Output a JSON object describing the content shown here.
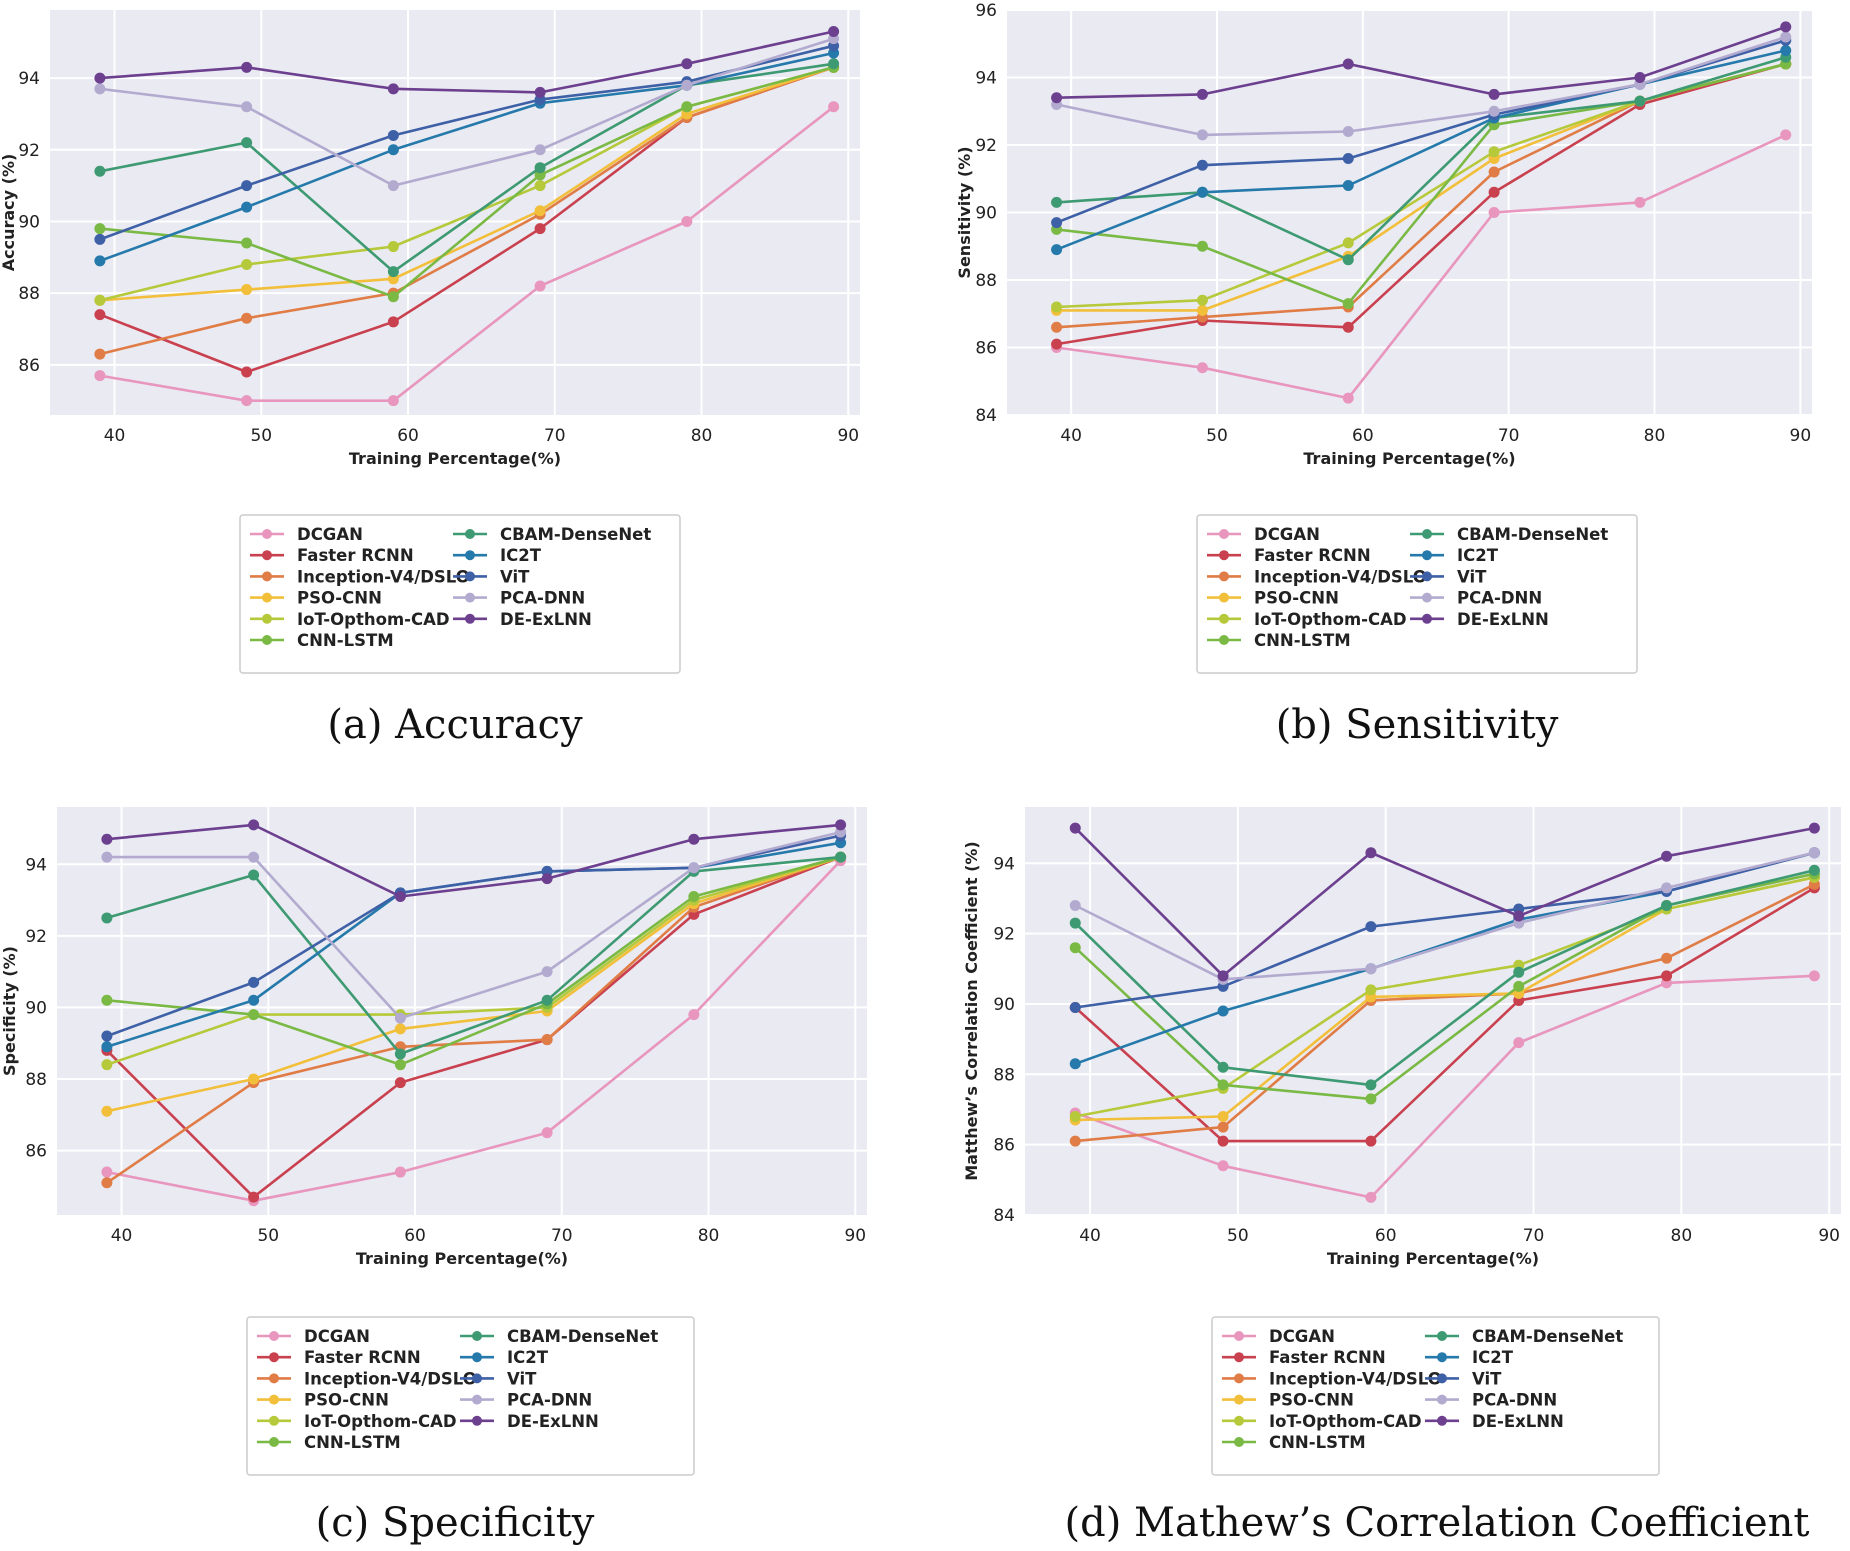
{
  "figure": {
    "x": [
      39,
      49,
      59,
      69,
      79,
      89
    ],
    "series_names": [
      "DCGAN",
      "Faster RCNN",
      "Inception-V4/DSLO",
      "PSO-CNN",
      "IoT-Opthom-CAD",
      "CNN-LSTM",
      "CBAM-DenseNet",
      "IC2T",
      "ViT",
      "PCA-DNN",
      "DE-ExLNN"
    ],
    "colors": [
      "#e896bd",
      "#c9404f",
      "#e07c45",
      "#f2bf3a",
      "#b6c93a",
      "#79b944",
      "#3e9a72",
      "#2579ab",
      "#3e60a6",
      "#b3abcf",
      "#6c3f8f"
    ],
    "x_ticks": [
      40,
      50,
      60,
      70,
      80,
      90
    ]
  },
  "chart_data": [
    {
      "type": "line",
      "caption": "(a) Accuracy",
      "xlabel": "Training Percentage(%)",
      "ylabel": "Accuracy (%)",
      "xlim": [
        35.6,
        90.8
      ],
      "ylim": [
        84.6,
        95.9
      ],
      "yticks": [
        86,
        88,
        90,
        92,
        94
      ],
      "series": [
        {
          "name": "DCGAN",
          "values": [
            85.7,
            85.0,
            85.0,
            88.2,
            90.0,
            93.2
          ]
        },
        {
          "name": "Faster RCNN",
          "values": [
            87.4,
            85.8,
            87.2,
            89.8,
            92.9,
            94.3
          ]
        },
        {
          "name": "Inception-V4/DSLO",
          "values": [
            86.3,
            87.3,
            88.0,
            90.2,
            92.9,
            94.3
          ]
        },
        {
          "name": "PSO-CNN",
          "values": [
            87.8,
            88.1,
            88.4,
            90.3,
            93.0,
            94.3
          ]
        },
        {
          "name": "IoT-Opthom-CAD",
          "values": [
            87.8,
            88.8,
            89.3,
            91.0,
            93.2,
            94.3
          ]
        },
        {
          "name": "CNN-LSTM",
          "values": [
            89.8,
            89.4,
            87.9,
            91.3,
            93.2,
            94.3
          ]
        },
        {
          "name": "CBAM-DenseNet",
          "values": [
            91.4,
            92.2,
            88.6,
            91.5,
            93.8,
            94.4
          ]
        },
        {
          "name": "IC2T",
          "values": [
            88.9,
            90.4,
            92.0,
            93.3,
            93.8,
            94.7
          ]
        },
        {
          "name": "ViT",
          "values": [
            89.5,
            91.0,
            92.4,
            93.4,
            93.9,
            94.9
          ]
        },
        {
          "name": "PCA-DNN",
          "values": [
            93.7,
            93.2,
            91.0,
            92.0,
            93.8,
            95.1
          ]
        },
        {
          "name": "DE-ExLNN",
          "values": [
            94.0,
            94.3,
            93.7,
            93.6,
            94.4,
            95.3
          ]
        }
      ]
    },
    {
      "type": "line",
      "caption": "(b) Sensitivity",
      "xlabel": "Training Percentage(%)",
      "ylabel": "Sensitivity (%)",
      "xlim": [
        35.6,
        90.8
      ],
      "ylim": [
        84,
        96
      ],
      "yticks": [
        84,
        86,
        88,
        90,
        92,
        94,
        96
      ],
      "series": [
        {
          "name": "DCGAN",
          "values": [
            86.0,
            85.4,
            84.5,
            90.0,
            90.3,
            92.3
          ]
        },
        {
          "name": "Faster RCNN",
          "values": [
            86.1,
            86.8,
            86.6,
            90.6,
            93.2,
            94.4
          ]
        },
        {
          "name": "Inception-V4/DSLO",
          "values": [
            86.6,
            86.9,
            87.2,
            91.2,
            93.3,
            94.4
          ]
        },
        {
          "name": "PSO-CNN",
          "values": [
            87.1,
            87.1,
            88.7,
            91.6,
            93.3,
            94.4
          ]
        },
        {
          "name": "IoT-Opthom-CAD",
          "values": [
            87.2,
            87.4,
            89.1,
            91.8,
            93.3,
            94.4
          ]
        },
        {
          "name": "CNN-LSTM",
          "values": [
            89.5,
            89.0,
            87.3,
            92.6,
            93.3,
            94.4
          ]
        },
        {
          "name": "CBAM-DenseNet",
          "values": [
            90.3,
            90.6,
            88.6,
            92.8,
            93.3,
            94.6
          ]
        },
        {
          "name": "IC2T",
          "values": [
            88.9,
            90.6,
            90.8,
            92.8,
            93.8,
            94.8
          ]
        },
        {
          "name": "ViT",
          "values": [
            89.7,
            91.4,
            91.6,
            92.9,
            93.8,
            95.1
          ]
        },
        {
          "name": "PCA-DNN",
          "values": [
            93.2,
            92.3,
            92.4,
            93.0,
            93.8,
            95.2
          ]
        },
        {
          "name": "DE-ExLNN",
          "values": [
            93.4,
            93.5,
            94.4,
            93.5,
            94.0,
            95.5
          ]
        }
      ]
    },
    {
      "type": "line",
      "caption": "(c) Specificity",
      "xlabel": "Training Percentage(%)",
      "ylabel": "Specificity (%)",
      "xlim": [
        35.6,
        90.8
      ],
      "ylim": [
        84.2,
        95.6
      ],
      "yticks": [
        86,
        88,
        90,
        92,
        94
      ],
      "series": [
        {
          "name": "DCGAN",
          "values": [
            85.4,
            84.6,
            85.4,
            86.5,
            89.8,
            94.1
          ]
        },
        {
          "name": "Faster RCNN",
          "values": [
            88.8,
            84.7,
            87.9,
            89.1,
            92.6,
            94.2
          ]
        },
        {
          "name": "Inception-V4/DSLO",
          "values": [
            85.1,
            87.9,
            88.9,
            89.1,
            92.8,
            94.2
          ]
        },
        {
          "name": "PSO-CNN",
          "values": [
            87.1,
            88.0,
            89.4,
            89.9,
            92.9,
            94.2
          ]
        },
        {
          "name": "IoT-Opthom-CAD",
          "values": [
            88.4,
            89.8,
            89.8,
            90.0,
            93.0,
            94.2
          ]
        },
        {
          "name": "CNN-LSTM",
          "values": [
            90.2,
            89.8,
            88.4,
            90.1,
            93.1,
            94.2
          ]
        },
        {
          "name": "CBAM-DenseNet",
          "values": [
            92.5,
            93.7,
            88.7,
            90.2,
            93.8,
            94.2
          ]
        },
        {
          "name": "IC2T",
          "values": [
            88.9,
            90.2,
            93.2,
            93.8,
            93.9,
            94.6
          ]
        },
        {
          "name": "ViT",
          "values": [
            89.2,
            90.7,
            93.2,
            93.8,
            93.9,
            94.8
          ]
        },
        {
          "name": "PCA-DNN",
          "values": [
            94.2,
            94.2,
            89.7,
            91.0,
            93.9,
            94.9
          ]
        },
        {
          "name": "DE-ExLNN",
          "values": [
            94.7,
            95.1,
            93.1,
            93.6,
            94.7,
            95.1
          ]
        }
      ]
    },
    {
      "type": "line",
      "caption": "(d) Mathew’s Correlation Coefficient",
      "xlabel": "Training Percentage(%)",
      "ylabel": "Matthew’s Correlation Coefficient (%)",
      "xlim": [
        35.6,
        90.8
      ],
      "ylim": [
        84,
        95.6
      ],
      "yticks": [
        84,
        86,
        88,
        90,
        92,
        94
      ],
      "series": [
        {
          "name": "DCGAN",
          "values": [
            86.9,
            85.4,
            84.5,
            88.9,
            90.6,
            90.8
          ]
        },
        {
          "name": "Faster RCNN",
          "values": [
            89.9,
            86.1,
            86.1,
            90.1,
            90.8,
            93.3
          ]
        },
        {
          "name": "Inception-V4/DSLO",
          "values": [
            86.1,
            86.5,
            90.1,
            90.3,
            91.3,
            93.4
          ]
        },
        {
          "name": "PSO-CNN",
          "values": [
            86.7,
            86.8,
            90.2,
            90.3,
            92.7,
            93.6
          ]
        },
        {
          "name": "IoT-Opthom-CAD",
          "values": [
            86.8,
            87.6,
            90.4,
            91.1,
            92.7,
            93.6
          ]
        },
        {
          "name": "CNN-LSTM",
          "values": [
            91.6,
            87.7,
            87.3,
            90.5,
            92.8,
            93.7
          ]
        },
        {
          "name": "CBAM-DenseNet",
          "values": [
            92.3,
            88.2,
            87.7,
            90.9,
            92.8,
            93.8
          ]
        },
        {
          "name": "IC2T",
          "values": [
            88.3,
            89.8,
            91.0,
            92.4,
            93.2,
            94.3
          ]
        },
        {
          "name": "ViT",
          "values": [
            89.9,
            90.5,
            92.2,
            92.7,
            93.2,
            94.3
          ]
        },
        {
          "name": "PCA-DNN",
          "values": [
            92.8,
            90.7,
            91.0,
            92.3,
            93.3,
            94.3
          ]
        },
        {
          "name": "DE-ExLNN",
          "values": [
            95.0,
            90.8,
            94.3,
            92.5,
            94.2,
            95.0
          ]
        }
      ]
    }
  ]
}
